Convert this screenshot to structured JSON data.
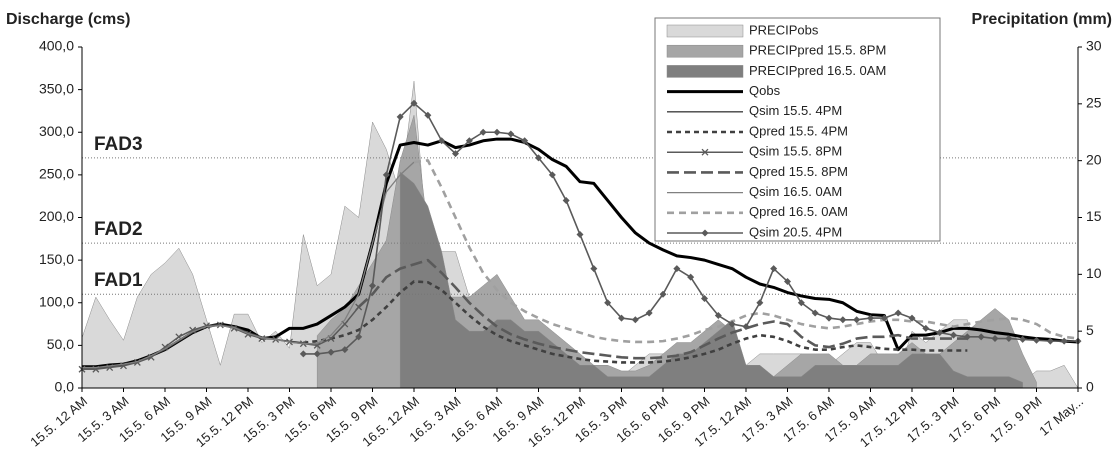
{
  "chart_data": {
    "type": "combo",
    "y_axis_label": "Discharge (cms)",
    "y2_axis_label": "Precipitation (mm)",
    "categories": [
      "15.5. 12 AM",
      null,
      null,
      "15.5. 3 AM",
      null,
      null,
      "15.5. 6 AM",
      null,
      null,
      "15.5. 9 AM",
      null,
      null,
      "15.5. 12 PM",
      null,
      null,
      "15.5. 3 PM",
      null,
      null,
      "15.5. 6 PM",
      null,
      null,
      "15.5. 9 PM",
      null,
      null,
      "16.5. 12 AM",
      null,
      null,
      "16.5. 3 AM",
      null,
      null,
      "16.5. 6 AM",
      null,
      null,
      "16.5. 9 AM",
      null,
      null,
      "16.5. 12 PM",
      null,
      null,
      "16.5. 3 PM",
      null,
      null,
      "16.5. 6 PM",
      null,
      null,
      "16.5. 9 PM",
      null,
      null,
      "17.5. 12 AM",
      null,
      null,
      "17.5. 3 AM",
      null,
      null,
      "17.5. 6 AM",
      null,
      null,
      "17.5. 9 AM",
      null,
      null,
      "17.5. 12 PM",
      null,
      null,
      "17.5. 3 PM",
      null,
      null,
      "17.5. 6 PM",
      null,
      null,
      "17.5. 9 PM",
      null,
      null,
      "17 May..."
    ],
    "ylim": [
      0,
      400
    ],
    "yticks": [
      {
        "value": 0,
        "label": "0,0"
      },
      {
        "value": 50,
        "label": "50,0"
      },
      {
        "value": 100,
        "label": "100,0"
      },
      {
        "value": 150,
        "label": "150,0"
      },
      {
        "value": 200,
        "label": "200,0"
      },
      {
        "value": 250,
        "label": "250,0"
      },
      {
        "value": 300,
        "label": "300,0"
      },
      {
        "value": 350,
        "label": "350,0"
      },
      {
        "value": 400,
        "label": "400,0"
      }
    ],
    "y2lim": [
      0,
      30
    ],
    "y2ticks": [
      0,
      5,
      10,
      15,
      20,
      25,
      30
    ],
    "thresholds": [
      {
        "label": "FAD3",
        "value": 270,
        "color": "#333333"
      },
      {
        "label": "FAD2",
        "value": 170,
        "color": "#707070"
      },
      {
        "label": "FAD1",
        "value": 110,
        "color": "#b0b0b0"
      }
    ],
    "series": [
      {
        "name": "PRECIPobs",
        "kind": "area",
        "axis": "y2",
        "color": "#d9d9d9",
        "values": [
          4.4,
          8,
          6,
          4.2,
          8,
          10,
          11,
          12.3,
          10,
          6,
          2,
          6.5,
          6.5,
          4,
          5,
          3.5,
          13.5,
          9,
          10,
          16,
          15,
          23.4,
          21,
          17,
          27,
          12,
          12,
          12,
          8,
          7,
          5,
          4,
          4,
          3,
          2,
          1,
          1,
          1,
          1,
          1,
          2,
          3,
          3,
          3,
          3,
          3,
          2,
          2,
          2,
          3,
          3,
          3,
          3,
          2,
          2,
          3,
          4,
          4,
          2,
          1,
          5,
          4,
          5,
          6,
          6,
          2,
          1,
          1,
          0.5,
          1.5,
          1.5,
          2,
          0
        ]
      },
      {
        "name": "PRECIPpred 15.5. 8PM",
        "kind": "area",
        "axis": "y2",
        "color": "#a6a6a6",
        "values": [
          null,
          null,
          null,
          null,
          null,
          null,
          null,
          null,
          null,
          null,
          null,
          null,
          null,
          null,
          null,
          null,
          null,
          4.6,
          6,
          7,
          9,
          11,
          13,
          20,
          24,
          14,
          8,
          8,
          8,
          9,
          10,
          8,
          6,
          6,
          5,
          4,
          3,
          2,
          2,
          1.5,
          1.5,
          2,
          3,
          4,
          4,
          5,
          6,
          5,
          2,
          0.5,
          1,
          2,
          3,
          3,
          3,
          2,
          2,
          3,
          3,
          3,
          4,
          3,
          3,
          4,
          5,
          6,
          7,
          6,
          3,
          0.5,
          null,
          null,
          null
        ]
      },
      {
        "name": "PRECIPpred 16.5. 0AM",
        "kind": "area",
        "axis": "y2",
        "color": "#7f7f7f",
        "values": [
          null,
          null,
          null,
          null,
          null,
          null,
          null,
          null,
          null,
          null,
          null,
          null,
          null,
          null,
          null,
          null,
          null,
          null,
          null,
          null,
          null,
          null,
          null,
          19,
          18,
          16,
          12,
          6,
          5,
          5,
          6,
          6,
          5,
          5,
          4,
          3,
          2,
          2,
          1,
          1,
          1,
          1,
          2,
          3,
          3,
          4,
          5,
          6,
          2,
          2,
          1,
          1,
          1,
          2,
          2,
          2,
          2,
          2,
          2,
          2,
          3,
          3,
          3,
          1.5,
          1,
          1,
          1,
          1,
          0.5,
          null,
          null,
          null,
          null
        ]
      },
      {
        "name": "Qobs",
        "kind": "line",
        "color": "#000000",
        "width": 3,
        "values": [
          25,
          25,
          27,
          28,
          32,
          38,
          45,
          55,
          65,
          72,
          75,
          72,
          68,
          58,
          60,
          70,
          70,
          75,
          85,
          95,
          110,
          170,
          240,
          285,
          288,
          285,
          290,
          282,
          285,
          290,
          292,
          292,
          288,
          280,
          268,
          260,
          242,
          240,
          220,
          200,
          182,
          170,
          162,
          155,
          153,
          150,
          145,
          140,
          130,
          122,
          118,
          112,
          108,
          105,
          104,
          100,
          90,
          86,
          85,
          45,
          62,
          62,
          65,
          70,
          70,
          68,
          65,
          63,
          60,
          58,
          57,
          55,
          54
        ]
      },
      {
        "name": "Qsim 15.5. 4PM",
        "kind": "line",
        "color": "#404040",
        "width": 1.3,
        "values": [
          23,
          23,
          25,
          27,
          30,
          37,
          45,
          55,
          65,
          73,
          74,
          72,
          65,
          60,
          57,
          55,
          53,
          null,
          null,
          null,
          null,
          null,
          null,
          null,
          null,
          null,
          null,
          null,
          null,
          null,
          null,
          null,
          null,
          null,
          null,
          null,
          null,
          null,
          null,
          null,
          null,
          null,
          null,
          null,
          null,
          null,
          null,
          null,
          null,
          null,
          null,
          null,
          null,
          null,
          null,
          null,
          null,
          null,
          null,
          null,
          null,
          null,
          null,
          null,
          null,
          null,
          null,
          null,
          null,
          null,
          null,
          null,
          null
        ]
      },
      {
        "name": "Qpred 15.5. 4PM",
        "kind": "line",
        "color": "#404040",
        "width": 2.6,
        "dash": "5,4",
        "values": [
          null,
          null,
          null,
          null,
          null,
          null,
          null,
          null,
          null,
          null,
          null,
          null,
          null,
          null,
          null,
          null,
          53,
          55,
          58,
          62,
          68,
          80,
          95,
          112,
          125,
          124,
          115,
          100,
          85,
          72,
          62,
          55,
          50,
          45,
          40,
          37,
          34,
          32,
          31,
          30,
          30,
          30,
          31,
          33,
          36,
          40,
          45,
          52,
          58,
          62,
          60,
          55,
          48,
          45,
          45,
          48,
          50,
          48,
          46,
          45,
          45,
          44,
          44,
          44,
          44,
          null,
          null,
          null,
          null,
          null,
          null,
          null,
          null
        ]
      },
      {
        "name": "Qsim 15.5. 8PM",
        "kind": "line",
        "color": "#5a5a5a",
        "width": 1.5,
        "marker": "x",
        "values": [
          22,
          22,
          24,
          26,
          30,
          36,
          48,
          60,
          68,
          73,
          74,
          70,
          63,
          58,
          57,
          54,
          52,
          50,
          58,
          75,
          95,
          null,
          null,
          null,
          null,
          null,
          null,
          null,
          null,
          null,
          null,
          null,
          null,
          null,
          null,
          null,
          null,
          null,
          null,
          null,
          null,
          null,
          null,
          null,
          null,
          null,
          null,
          null,
          null,
          null,
          null,
          null,
          null,
          null,
          null,
          null,
          null,
          null,
          null,
          null,
          null,
          null,
          null,
          null,
          null,
          null,
          null,
          null,
          null,
          null,
          null,
          null,
          null
        ]
      },
      {
        "name": "Qpred 15.5. 8PM",
        "kind": "line",
        "color": "#5a5a5a",
        "width": 2.6,
        "dash": "12,5",
        "values": [
          null,
          null,
          null,
          null,
          null,
          null,
          null,
          null,
          null,
          null,
          null,
          null,
          null,
          null,
          null,
          null,
          null,
          null,
          null,
          null,
          95,
          110,
          130,
          140,
          145,
          150,
          135,
          118,
          100,
          85,
          72,
          63,
          57,
          52,
          48,
          45,
          42,
          40,
          38,
          36,
          35,
          35,
          36,
          38,
          42,
          50,
          58,
          65,
          70,
          75,
          78,
          75,
          60,
          50,
          48,
          52,
          58,
          60,
          60,
          62,
          58,
          58,
          58,
          58,
          58,
          null,
          null,
          null,
          null,
          null,
          null,
          null,
          null
        ]
      },
      {
        "name": "Qsim 16.5. 0AM",
        "kind": "line",
        "color": "#808080",
        "width": 1.3,
        "values": [
          24,
          24,
          26,
          28,
          31,
          38,
          46,
          56,
          66,
          72,
          73,
          71,
          64,
          59,
          57,
          54,
          52,
          52,
          62,
          80,
          110,
          170,
          230,
          250,
          265,
          null,
          null,
          null,
          null,
          null,
          null,
          null,
          null,
          null,
          null,
          null,
          null,
          null,
          null,
          null,
          null,
          null,
          null,
          null,
          null,
          null,
          null,
          null,
          null,
          null,
          null,
          null,
          null,
          null,
          null,
          null,
          null,
          null,
          null,
          null,
          null,
          null,
          null,
          null,
          null,
          null,
          null,
          null,
          null,
          null,
          null,
          null,
          null
        ]
      },
      {
        "name": "Qpred 16.5. 0AM",
        "kind": "line",
        "color": "#a0a0a0",
        "width": 2.6,
        "dash": "7,5",
        "values": [
          null,
          null,
          null,
          null,
          null,
          null,
          null,
          null,
          null,
          null,
          null,
          null,
          null,
          null,
          null,
          null,
          null,
          null,
          null,
          null,
          null,
          null,
          null,
          null,
          265,
          267,
          235,
          200,
          165,
          135,
          115,
          100,
          90,
          82,
          75,
          70,
          65,
          60,
          57,
          55,
          54,
          54,
          55,
          58,
          62,
          68,
          72,
          78,
          85,
          88,
          85,
          80,
          75,
          72,
          70,
          72,
          75,
          78,
          80,
          80,
          78,
          78,
          75,
          72,
          75,
          78,
          80,
          82,
          80,
          75,
          65,
          60,
          58
        ]
      },
      {
        "name": "Qsim 20.5. 4PM",
        "kind": "line",
        "color": "#5a5a5a",
        "width": 1.6,
        "marker": "diamond",
        "values": [
          null,
          null,
          null,
          null,
          null,
          null,
          null,
          null,
          null,
          null,
          null,
          null,
          null,
          null,
          null,
          null,
          40,
          40,
          42,
          45,
          60,
          120,
          250,
          318,
          334,
          320,
          290,
          275,
          290,
          300,
          300,
          298,
          290,
          270,
          250,
          220,
          180,
          140,
          100,
          82,
          80,
          88,
          110,
          140,
          130,
          105,
          85,
          75,
          72,
          100,
          140,
          125,
          100,
          88,
          82,
          80,
          80,
          82,
          82,
          88,
          82,
          70,
          65,
          62,
          60,
          60,
          58,
          58,
          57,
          56,
          55,
          55,
          55
        ]
      }
    ]
  }
}
